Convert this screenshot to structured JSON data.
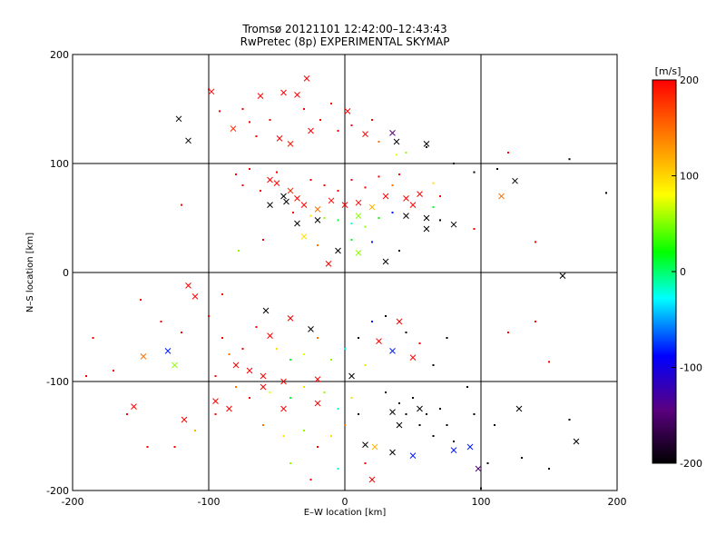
{
  "chart_data": {
    "type": "scatter",
    "title": "Tromsø 20121101 12:42:00–12:43:43",
    "subtitle": "RwPretec (8p) EXPERIMENTAL SKYMAP",
    "xlabel": "E–W location [km]",
    "ylabel": "N–S location [km]",
    "xlim": [
      -200,
      200
    ],
    "ylim": [
      -200,
      200
    ],
    "x_ticks": [
      "-200",
      "-100",
      "0",
      "100",
      "200"
    ],
    "y_ticks": [
      "-200",
      "-100",
      "0",
      "100",
      "200"
    ],
    "grid": true,
    "colorbar": {
      "label": "[m/s]",
      "range": [
        -200,
        200
      ],
      "ticks": [
        "200",
        "100",
        "0",
        "-100",
        "-200"
      ],
      "colormap": [
        "#000000",
        "#5a0080",
        "#0000ff",
        "#00ffff",
        "#00ff00",
        "#ffff00",
        "#ff8000",
        "#ff0000"
      ]
    },
    "markers": [
      {
        "x": -122,
        "y": 141,
        "v": -200
      },
      {
        "x": -115,
        "y": 121,
        "v": -200
      },
      {
        "x": -98,
        "y": 166,
        "v": 200
      },
      {
        "x": -82,
        "y": 132,
        "v": 180
      },
      {
        "x": -62,
        "y": 162,
        "v": 200
      },
      {
        "x": -45,
        "y": 165,
        "v": 200
      },
      {
        "x": -35,
        "y": 163,
        "v": 200
      },
      {
        "x": -28,
        "y": 178,
        "v": 200
      },
      {
        "x": -48,
        "y": 123,
        "v": 200
      },
      {
        "x": -40,
        "y": 118,
        "v": 190
      },
      {
        "x": -25,
        "y": 130,
        "v": 200
      },
      {
        "x": 2,
        "y": 148,
        "v": 200
      },
      {
        "x": 15,
        "y": 127,
        "v": 200
      },
      {
        "x": 35,
        "y": 128,
        "v": -150
      },
      {
        "x": 38,
        "y": 120,
        "v": -200
      },
      {
        "x": 60,
        "y": 118,
        "v": -200
      },
      {
        "x": 125,
        "y": 84,
        "v": -200
      },
      {
        "x": 115,
        "y": 70,
        "v": 150
      },
      {
        "x": -55,
        "y": 85,
        "v": 200
      },
      {
        "x": -50,
        "y": 82,
        "v": 200
      },
      {
        "x": -40,
        "y": 75,
        "v": 180
      },
      {
        "x": -45,
        "y": 70,
        "v": -200
      },
      {
        "x": -43,
        "y": 65,
        "v": -200
      },
      {
        "x": -35,
        "y": 68,
        "v": 200
      },
      {
        "x": -30,
        "y": 62,
        "v": 200
      },
      {
        "x": -20,
        "y": 58,
        "v": 150
      },
      {
        "x": -10,
        "y": 66,
        "v": 200
      },
      {
        "x": 0,
        "y": 62,
        "v": 200
      },
      {
        "x": 10,
        "y": 64,
        "v": 200
      },
      {
        "x": 20,
        "y": 60,
        "v": 120
      },
      {
        "x": 30,
        "y": 70,
        "v": 200
      },
      {
        "x": 45,
        "y": 68,
        "v": 200
      },
      {
        "x": 50,
        "y": 62,
        "v": 200
      },
      {
        "x": 55,
        "y": 72,
        "v": 200
      },
      {
        "x": -55,
        "y": 62,
        "v": -200
      },
      {
        "x": -35,
        "y": 45,
        "v": -200
      },
      {
        "x": -20,
        "y": 48,
        "v": -200
      },
      {
        "x": 10,
        "y": 52,
        "v": 60
      },
      {
        "x": 45,
        "y": 52,
        "v": -200
      },
      {
        "x": 60,
        "y": 50,
        "v": -200
      },
      {
        "x": 80,
        "y": 44,
        "v": -200
      },
      {
        "x": 60,
        "y": 40,
        "v": -200
      },
      {
        "x": -30,
        "y": 33,
        "v": 100
      },
      {
        "x": -5,
        "y": 20,
        "v": -200
      },
      {
        "x": 10,
        "y": 18,
        "v": 60
      },
      {
        "x": 30,
        "y": 10,
        "v": -200
      },
      {
        "x": -12,
        "y": 8,
        "v": 200
      },
      {
        "x": 160,
        "y": -3,
        "v": -200
      },
      {
        "x": -115,
        "y": -12,
        "v": 200
      },
      {
        "x": -110,
        "y": -22,
        "v": 200
      },
      {
        "x": -58,
        "y": -35,
        "v": -200
      },
      {
        "x": -40,
        "y": -42,
        "v": 200
      },
      {
        "x": -25,
        "y": -52,
        "v": -200
      },
      {
        "x": -55,
        "y": -58,
        "v": 200
      },
      {
        "x": -80,
        "y": -85,
        "v": 200
      },
      {
        "x": -70,
        "y": -90,
        "v": 200
      },
      {
        "x": -60,
        "y": -95,
        "v": 200
      },
      {
        "x": -45,
        "y": -100,
        "v": 200
      },
      {
        "x": -20,
        "y": -98,
        "v": 200
      },
      {
        "x": 5,
        "y": -95,
        "v": -200
      },
      {
        "x": 25,
        "y": -63,
        "v": 200
      },
      {
        "x": 35,
        "y": -72,
        "v": -80
      },
      {
        "x": 50,
        "y": -78,
        "v": 200
      },
      {
        "x": 40,
        "y": -45,
        "v": 200
      },
      {
        "x": -125,
        "y": -85,
        "v": 60
      },
      {
        "x": -130,
        "y": -72,
        "v": -80
      },
      {
        "x": -148,
        "y": -77,
        "v": 150
      },
      {
        "x": -155,
        "y": -123,
        "v": 200
      },
      {
        "x": -95,
        "y": -118,
        "v": 200
      },
      {
        "x": -85,
        "y": -125,
        "v": 200
      },
      {
        "x": -60,
        "y": -105,
        "v": 200
      },
      {
        "x": -45,
        "y": -125,
        "v": 200
      },
      {
        "x": -20,
        "y": -120,
        "v": 200
      },
      {
        "x": 15,
        "y": -158,
        "v": -200
      },
      {
        "x": 22,
        "y": -160,
        "v": 120
      },
      {
        "x": 35,
        "y": -128,
        "v": -200
      },
      {
        "x": 40,
        "y": -140,
        "v": -200
      },
      {
        "x": 50,
        "y": -168,
        "v": -80
      },
      {
        "x": 55,
        "y": -125,
        "v": -200
      },
      {
        "x": 80,
        "y": -163,
        "v": -80
      },
      {
        "x": 92,
        "y": -160,
        "v": -80
      },
      {
        "x": 98,
        "y": -180,
        "v": -150
      },
      {
        "x": 128,
        "y": -125,
        "v": -200
      },
      {
        "x": 170,
        "y": -155,
        "v": -200
      },
      {
        "x": -118,
        "y": -135,
        "v": 200
      },
      {
        "x": 20,
        "y": -190,
        "v": 200
      },
      {
        "x": 35,
        "y": -165,
        "v": -200
      }
    ],
    "dots": [
      {
        "x": -100,
        "y": 168,
        "v": 200
      },
      {
        "x": -92,
        "y": 148,
        "v": 200
      },
      {
        "x": -75,
        "y": 150,
        "v": 200
      },
      {
        "x": -70,
        "y": 138,
        "v": 200
      },
      {
        "x": -65,
        "y": 125,
        "v": 200
      },
      {
        "x": -55,
        "y": 140,
        "v": 200
      },
      {
        "x": -30,
        "y": 150,
        "v": 200
      },
      {
        "x": -18,
        "y": 140,
        "v": 200
      },
      {
        "x": -10,
        "y": 155,
        "v": 200
      },
      {
        "x": -5,
        "y": 130,
        "v": 200
      },
      {
        "x": 5,
        "y": 135,
        "v": 200
      },
      {
        "x": 20,
        "y": 140,
        "v": 200
      },
      {
        "x": 25,
        "y": 120,
        "v": 150
      },
      {
        "x": 38,
        "y": 108,
        "v": 80
      },
      {
        "x": 45,
        "y": 110,
        "v": 60
      },
      {
        "x": 60,
        "y": 115,
        "v": -200
      },
      {
        "x": 80,
        "y": 100,
        "v": -200
      },
      {
        "x": 95,
        "y": 92,
        "v": -200
      },
      {
        "x": 120,
        "y": 110,
        "v": 200
      },
      {
        "x": 165,
        "y": 104,
        "v": -200
      },
      {
        "x": 192,
        "y": 73,
        "v": -200
      },
      {
        "x": -120,
        "y": 62,
        "v": 200
      },
      {
        "x": -80,
        "y": 90,
        "v": 200
      },
      {
        "x": -75,
        "y": 80,
        "v": 200
      },
      {
        "x": -70,
        "y": 95,
        "v": 200
      },
      {
        "x": -62,
        "y": 75,
        "v": 200
      },
      {
        "x": -50,
        "y": 92,
        "v": 200
      },
      {
        "x": -25,
        "y": 85,
        "v": 200
      },
      {
        "x": -15,
        "y": 80,
        "v": 200
      },
      {
        "x": -5,
        "y": 75,
        "v": 200
      },
      {
        "x": 5,
        "y": 85,
        "v": 200
      },
      {
        "x": 15,
        "y": 78,
        "v": 200
      },
      {
        "x": 25,
        "y": 88,
        "v": 200
      },
      {
        "x": 35,
        "y": 80,
        "v": 150
      },
      {
        "x": 40,
        "y": 90,
        "v": 200
      },
      {
        "x": 65,
        "y": 82,
        "v": 100
      },
      {
        "x": 70,
        "y": 70,
        "v": 200
      },
      {
        "x": -38,
        "y": 55,
        "v": 200
      },
      {
        "x": -25,
        "y": 52,
        "v": 100
      },
      {
        "x": -15,
        "y": 50,
        "v": 60
      },
      {
        "x": -5,
        "y": 48,
        "v": 20
      },
      {
        "x": 5,
        "y": 45,
        "v": -20
      },
      {
        "x": 15,
        "y": 42,
        "v": 60
      },
      {
        "x": 25,
        "y": 50,
        "v": 30
      },
      {
        "x": 35,
        "y": 55,
        "v": -80
      },
      {
        "x": 65,
        "y": 60,
        "v": 20
      },
      {
        "x": 70,
        "y": 48,
        "v": -200
      },
      {
        "x": -78,
        "y": 20,
        "v": 60
      },
      {
        "x": -20,
        "y": 25,
        "v": 150
      },
      {
        "x": 5,
        "y": 30,
        "v": 30
      },
      {
        "x": 20,
        "y": 28,
        "v": -80
      },
      {
        "x": 40,
        "y": 20,
        "v": -200
      },
      {
        "x": 95,
        "y": 40,
        "v": 200
      },
      {
        "x": 140,
        "y": 28,
        "v": 200
      },
      {
        "x": 112,
        "y": 95,
        "v": -200
      },
      {
        "x": -185,
        "y": -60,
        "v": 200
      },
      {
        "x": -150,
        "y": -25,
        "v": 200
      },
      {
        "x": -135,
        "y": -45,
        "v": 200
      },
      {
        "x": -120,
        "y": -55,
        "v": 200
      },
      {
        "x": -100,
        "y": -40,
        "v": 200
      },
      {
        "x": -90,
        "y": -60,
        "v": 200
      },
      {
        "x": -85,
        "y": -75,
        "v": 150
      },
      {
        "x": -75,
        "y": -70,
        "v": 200
      },
      {
        "x": -65,
        "y": -50,
        "v": 200
      },
      {
        "x": -50,
        "y": -70,
        "v": 100
      },
      {
        "x": -40,
        "y": -80,
        "v": 20
      },
      {
        "x": -30,
        "y": -75,
        "v": 80
      },
      {
        "x": -20,
        "y": -60,
        "v": 150
      },
      {
        "x": -10,
        "y": -80,
        "v": 60
      },
      {
        "x": 0,
        "y": -70,
        "v": -20
      },
      {
        "x": 10,
        "y": -60,
        "v": -200
      },
      {
        "x": 15,
        "y": -85,
        "v": 100
      },
      {
        "x": 20,
        "y": -45,
        "v": -80
      },
      {
        "x": 30,
        "y": -40,
        "v": -200
      },
      {
        "x": 45,
        "y": -55,
        "v": -200
      },
      {
        "x": 55,
        "y": -65,
        "v": 200
      },
      {
        "x": 65,
        "y": -85,
        "v": -200
      },
      {
        "x": 75,
        "y": -60,
        "v": -200
      },
      {
        "x": -95,
        "y": -95,
        "v": 200
      },
      {
        "x": -80,
        "y": -105,
        "v": 150
      },
      {
        "x": -70,
        "y": -115,
        "v": 200
      },
      {
        "x": -55,
        "y": -110,
        "v": 80
      },
      {
        "x": -40,
        "y": -115,
        "v": 20
      },
      {
        "x": -30,
        "y": -105,
        "v": 100
      },
      {
        "x": -15,
        "y": -110,
        "v": 60
      },
      {
        "x": -5,
        "y": -125,
        "v": -20
      },
      {
        "x": 5,
        "y": -115,
        "v": 100
      },
      {
        "x": -60,
        "y": -140,
        "v": 150
      },
      {
        "x": -45,
        "y": -150,
        "v": 100
      },
      {
        "x": -30,
        "y": -145,
        "v": 60
      },
      {
        "x": -20,
        "y": -160,
        "v": 200
      },
      {
        "x": -10,
        "y": -150,
        "v": 100
      },
      {
        "x": 0,
        "y": -140,
        "v": 150
      },
      {
        "x": 10,
        "y": -130,
        "v": -200
      },
      {
        "x": -40,
        "y": -175,
        "v": 60
      },
      {
        "x": -25,
        "y": -190,
        "v": 200
      },
      {
        "x": -5,
        "y": -180,
        "v": -20
      },
      {
        "x": 15,
        "y": -175,
        "v": 200
      },
      {
        "x": 30,
        "y": -110,
        "v": -200
      },
      {
        "x": 40,
        "y": -120,
        "v": -200
      },
      {
        "x": 45,
        "y": -130,
        "v": -200
      },
      {
        "x": 50,
        "y": -115,
        "v": -200
      },
      {
        "x": 55,
        "y": -140,
        "v": -200
      },
      {
        "x": 60,
        "y": -130,
        "v": -200
      },
      {
        "x": 65,
        "y": -150,
        "v": -200
      },
      {
        "x": 70,
        "y": -125,
        "v": -200
      },
      {
        "x": 75,
        "y": -140,
        "v": -200
      },
      {
        "x": 80,
        "y": -155,
        "v": -200
      },
      {
        "x": 90,
        "y": -105,
        "v": -200
      },
      {
        "x": 95,
        "y": -130,
        "v": -200
      },
      {
        "x": 105,
        "y": -175,
        "v": -200
      },
      {
        "x": 110,
        "y": -140,
        "v": -200
      },
      {
        "x": 130,
        "y": -170,
        "v": -200
      },
      {
        "x": 150,
        "y": -180,
        "v": -200
      },
      {
        "x": 165,
        "y": -135,
        "v": -200
      },
      {
        "x": 100,
        "y": -198,
        "v": -200
      },
      {
        "x": 150,
        "y": -82,
        "v": 200
      },
      {
        "x": 120,
        "y": -55,
        "v": 200
      },
      {
        "x": 140,
        "y": -45,
        "v": 200
      },
      {
        "x": -160,
        "y": -130,
        "v": 200
      },
      {
        "x": -145,
        "y": -160,
        "v": 200
      },
      {
        "x": -125,
        "y": -160,
        "v": 200
      },
      {
        "x": -110,
        "y": -145,
        "v": 120
      },
      {
        "x": -95,
        "y": -130,
        "v": 200
      },
      {
        "x": -190,
        "y": -95,
        "v": 200
      },
      {
        "x": -170,
        "y": -90,
        "v": 200
      },
      {
        "x": -60,
        "y": 30,
        "v": 200
      },
      {
        "x": -90,
        "y": -20,
        "v": 200
      }
    ]
  }
}
